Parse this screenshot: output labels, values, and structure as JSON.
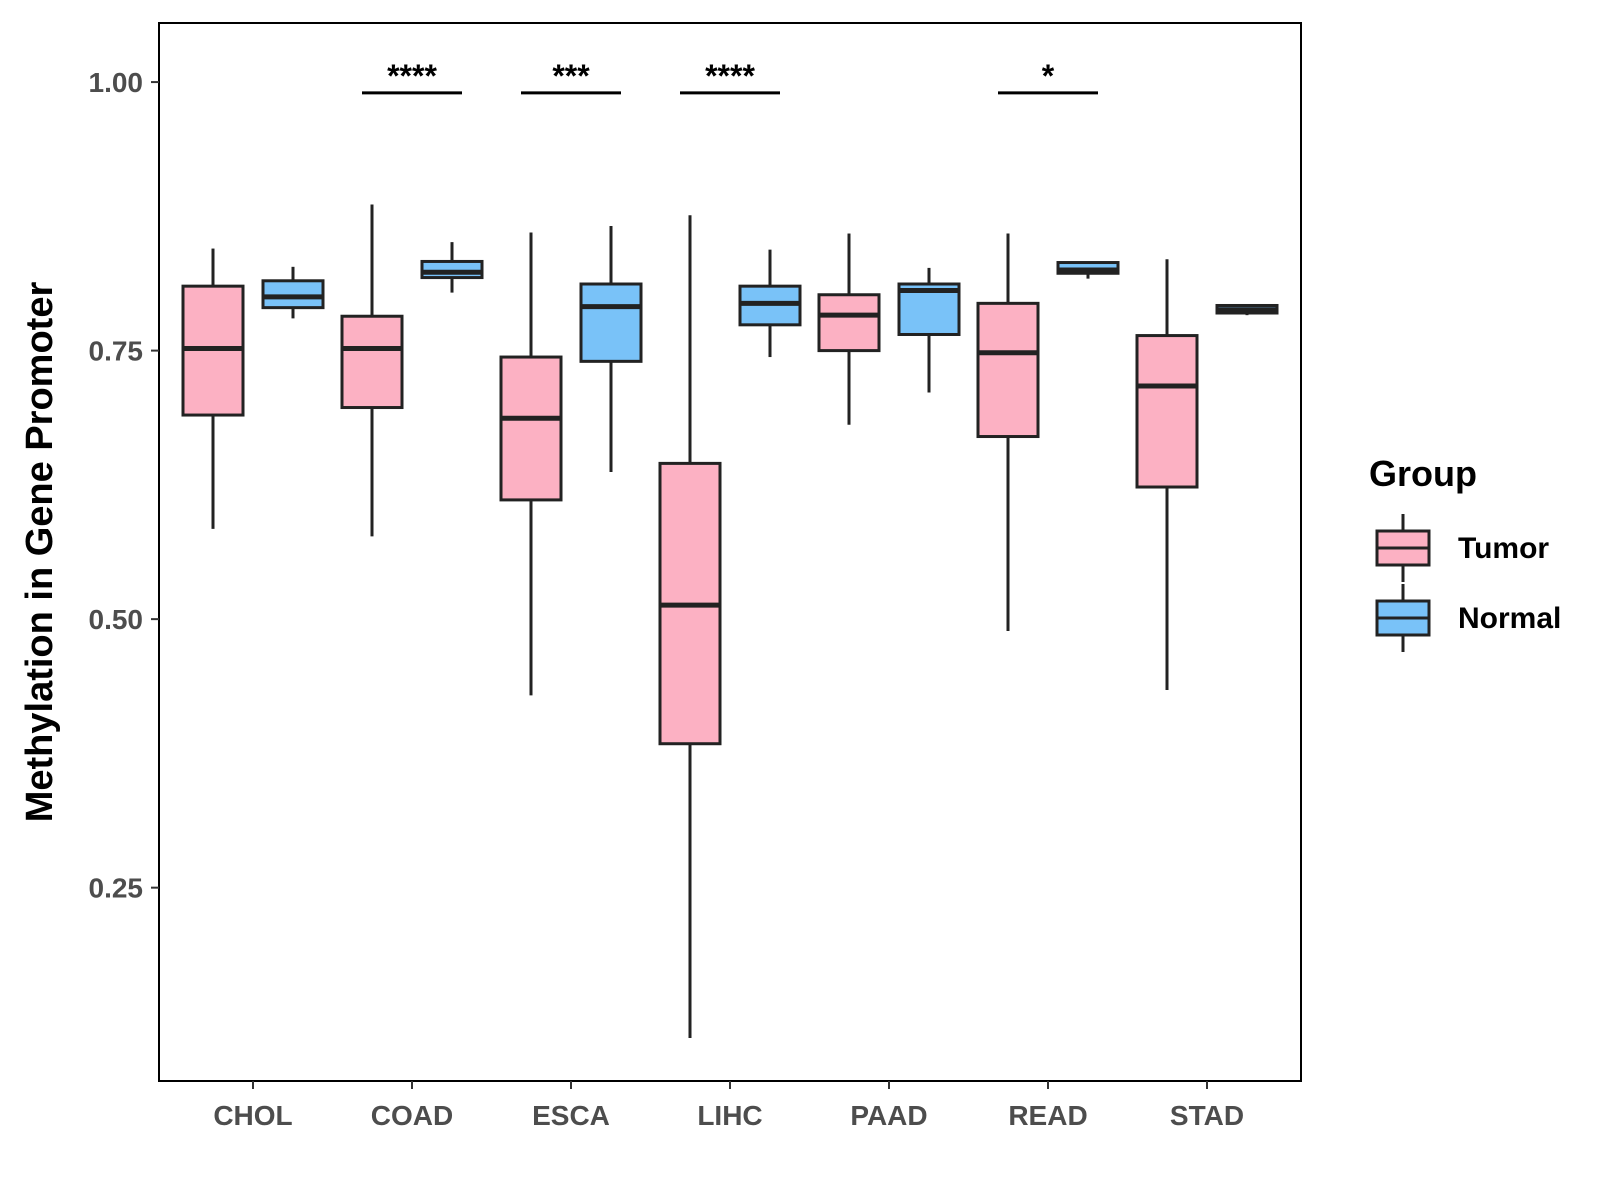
{
  "chart_data": {
    "type": "box",
    "title": "",
    "xlabel": "",
    "ylabel": "Methylation in Gene Promoter",
    "ylim": [
      0.07,
      1.055
    ],
    "yticks": [
      0.25,
      0.5,
      0.75,
      1.0
    ],
    "ytick_labels": [
      "0.25",
      "0.50",
      "0.75",
      "1.00"
    ],
    "categories": [
      "CHOL",
      "COAD",
      "ESCA",
      "LIHC",
      "PAAD",
      "READ",
      "STAD"
    ],
    "legend": {
      "title": "Group",
      "position": "right",
      "entries": [
        {
          "name": "Tumor",
          "color": "#FCB1C3"
        },
        {
          "name": "Normal",
          "color": "#79C2F8"
        }
      ]
    },
    "series": [
      {
        "name": "Tumor",
        "color": "#FCB1C3",
        "boxes": [
          {
            "category": "CHOL",
            "min": 0.584,
            "q1": 0.69,
            "median": 0.752,
            "q3": 0.81,
            "max": 0.845
          },
          {
            "category": "COAD",
            "min": 0.577,
            "q1": 0.697,
            "median": 0.752,
            "q3": 0.782,
            "max": 0.886
          },
          {
            "category": "ESCA",
            "min": 0.429,
            "q1": 0.611,
            "median": 0.687,
            "q3": 0.744,
            "max": 0.86
          },
          {
            "category": "LIHC",
            "min": 0.11,
            "q1": 0.384,
            "median": 0.513,
            "q3": 0.645,
            "max": 0.876
          },
          {
            "category": "PAAD",
            "min": 0.681,
            "q1": 0.75,
            "median": 0.783,
            "q3": 0.802,
            "max": 0.859
          },
          {
            "category": "READ",
            "min": 0.489,
            "q1": 0.67,
            "median": 0.748,
            "q3": 0.794,
            "max": 0.859
          },
          {
            "category": "STAD",
            "min": 0.434,
            "q1": 0.623,
            "median": 0.717,
            "q3": 0.764,
            "max": 0.835
          }
        ]
      },
      {
        "name": "Normal",
        "color": "#79C2F8",
        "boxes": [
          {
            "category": "CHOL",
            "min": 0.78,
            "q1": 0.79,
            "median": 0.8,
            "q3": 0.815,
            "max": 0.828
          },
          {
            "category": "COAD",
            "min": 0.804,
            "q1": 0.818,
            "median": 0.823,
            "q3": 0.833,
            "max": 0.851
          },
          {
            "category": "ESCA",
            "min": 0.637,
            "q1": 0.74,
            "median": 0.791,
            "q3": 0.812,
            "max": 0.866
          },
          {
            "category": "LIHC",
            "min": 0.744,
            "q1": 0.774,
            "median": 0.794,
            "q3": 0.81,
            "max": 0.844
          },
          {
            "category": "PAAD",
            "min": 0.711,
            "q1": 0.765,
            "median": 0.806,
            "q3": 0.812,
            "max": 0.827
          },
          {
            "category": "READ",
            "min": 0.817,
            "q1": 0.822,
            "median": 0.825,
            "q3": 0.832,
            "max": 0.832
          },
          {
            "category": "STAD",
            "min": 0.783,
            "q1": 0.785,
            "median": 0.788,
            "q3": 0.792,
            "max": 0.792
          }
        ]
      }
    ],
    "significance": [
      {
        "category": "COAD",
        "label": "****",
        "y": 0.99
      },
      {
        "category": "ESCA",
        "label": "***",
        "y": 0.99
      },
      {
        "category": "LIHC",
        "label": "****",
        "y": 0.99
      },
      {
        "category": "READ",
        "label": "*",
        "y": 0.99
      }
    ]
  }
}
